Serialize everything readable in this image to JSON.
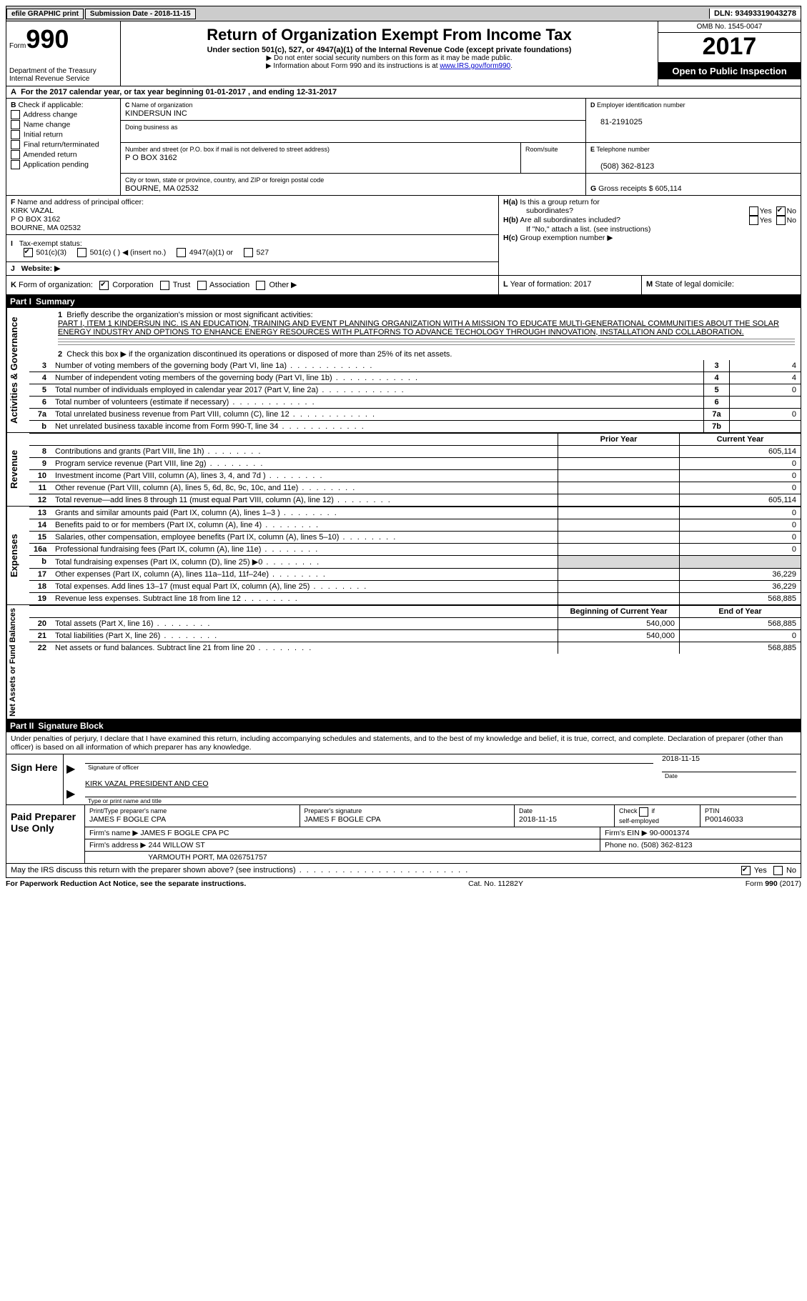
{
  "topbar": {
    "efile_label": "efile GRAPHIC print",
    "submission_label": "Submission Date - 2018-11-15",
    "dln_label": "DLN: 93493319043278"
  },
  "header": {
    "form_label": "Form",
    "form_number": "990",
    "dept1": "Department of the Treasury",
    "dept2": "Internal Revenue Service",
    "title": "Return of Organization Exempt From Income Tax",
    "subtitle": "Under section 501(c), 527, or 4947(a)(1) of the Internal Revenue Code (except private foundations)",
    "note1": "Do not enter social security numbers on this form as it may be made public.",
    "note2_pre": "Information about Form 990 and its instructions is at ",
    "note2_link": "www.IRS.gov/form990",
    "omb": "OMB No. 1545-0047",
    "year": "2017",
    "open": "Open to Public Inspection"
  },
  "A": "For the 2017 calendar year, or tax year beginning 01-01-2017   , and ending 12-31-2017",
  "B": {
    "title": "Check if applicable:",
    "items": [
      "Address change",
      "Name change",
      "Initial return",
      "Final return/terminated",
      "Amended return",
      "Application pending"
    ]
  },
  "C": {
    "lbl_name": "Name of organization",
    "name": "KINDERSUN INC",
    "lbl_dba": "Doing business as",
    "dba": "",
    "lbl_addr": "Number and street (or P.O. box if mail is not delivered to street address)",
    "lbl_room": "Room/suite",
    "addr": "P O BOX 3162",
    "lbl_city": "City or town, state or province, country, and ZIP or foreign postal code",
    "city": "BOURNE, MA  02532"
  },
  "D": {
    "lbl": "Employer identification number",
    "val": "81-2191025"
  },
  "E": {
    "lbl": "Telephone number",
    "val": "(508) 362-8123"
  },
  "G": {
    "lbl": "Gross receipts $",
    "val": "605,114"
  },
  "F": {
    "lbl": "Name and address of principal officer:",
    "v1": "KIRK VAZAL",
    "v2": "P O BOX 3162",
    "v3": "BOURNE, MA  02532"
  },
  "H": {
    "a": "Is this a group return for",
    "a2": "subordinates?",
    "b": "Are all subordinates included?",
    "ifno": "If \"No,\" attach a list. (see instructions)",
    "c": "Group exemption number ▶",
    "yes": "Yes",
    "no": "No"
  },
  "I": {
    "lbl": "Tax-exempt status:",
    "o1": "501(c)(3)",
    "o2": "501(c) (   ) ◀ (insert no.)",
    "o3": "4947(a)(1) or",
    "o4": "527"
  },
  "J": {
    "lbl": "Website: ▶",
    "val": ""
  },
  "K": {
    "lbl": "Form of organization:",
    "o1": "Corporation",
    "o2": "Trust",
    "o3": "Association",
    "o4": "Other ▶"
  },
  "L": {
    "lbl": "Year of formation:",
    "val": "2017"
  },
  "M": {
    "lbl": "State of legal domicile:",
    "val": ""
  },
  "part1": {
    "label": "Part I",
    "title": "Summary",
    "l1_lbl": "Briefly describe the organization's mission or most significant activities:",
    "l1_text": "PART I, ITEM 1 KINDERSUN INC. IS AN EDUCATION, TRAINING AND EVENT PLANNING ORGANIZATION WITH A MISSION TO EDUCATE MULTI-GENERATIONAL COMMUNITIES ABOUT THE SOLAR ENERGY INDUSTRY AND OPTIONS TO ENHANCE ENERGY RESOURCES WITH PLATFORNS TO ADVANCE TECHOLOGY THROUGH INNOVATION, INSTALLATION AND COLLABORATION.",
    "l2": "Check this box ▶        if the organization discontinued its operations or disposed of more than 25% of its net assets.",
    "rows_a": [
      {
        "n": "3",
        "d": "Number of voting members of the governing body (Part VI, line 1a)",
        "ln": "3",
        "v": "4"
      },
      {
        "n": "4",
        "d": "Number of independent voting members of the governing body (Part VI, line 1b)",
        "ln": "4",
        "v": "4"
      },
      {
        "n": "5",
        "d": "Total number of individuals employed in calendar year 2017 (Part V, line 2a)",
        "ln": "5",
        "v": "0"
      },
      {
        "n": "6",
        "d": "Total number of volunteers (estimate if necessary)",
        "ln": "6",
        "v": ""
      },
      {
        "n": "7a",
        "d": "Total unrelated business revenue from Part VIII, column (C), line 12",
        "ln": "7a",
        "v": "0"
      },
      {
        "n": "b",
        "d": "Net unrelated business taxable income from Form 990-T, line 34",
        "ln": "7b",
        "v": ""
      }
    ],
    "hdr2": {
      "c1": "Prior Year",
      "c2": "Current Year"
    },
    "rows_rev": [
      {
        "n": "8",
        "d": "Contributions and grants (Part VIII, line 1h)",
        "p": "",
        "c": "605,114"
      },
      {
        "n": "9",
        "d": "Program service revenue (Part VIII, line 2g)",
        "p": "",
        "c": "0"
      },
      {
        "n": "10",
        "d": "Investment income (Part VIII, column (A), lines 3, 4, and 7d )",
        "p": "",
        "c": "0"
      },
      {
        "n": "11",
        "d": "Other revenue (Part VIII, column (A), lines 5, 6d, 8c, 9c, 10c, and 11e)",
        "p": "",
        "c": "0"
      },
      {
        "n": "12",
        "d": "Total revenue—add lines 8 through 11 (must equal Part VIII, column (A), line 12)",
        "p": "",
        "c": "605,114"
      }
    ],
    "rows_exp": [
      {
        "n": "13",
        "d": "Grants and similar amounts paid (Part IX, column (A), lines 1–3 )",
        "p": "",
        "c": "0"
      },
      {
        "n": "14",
        "d": "Benefits paid to or for members (Part IX, column (A), line 4)",
        "p": "",
        "c": "0"
      },
      {
        "n": "15",
        "d": "Salaries, other compensation, employee benefits (Part IX, column (A), lines 5–10)",
        "p": "",
        "c": "0"
      },
      {
        "n": "16a",
        "d": "Professional fundraising fees (Part IX, column (A), line 11e)",
        "p": "",
        "c": "0"
      },
      {
        "n": "b",
        "d": "Total fundraising expenses (Part IX, column (D), line 25) ▶0",
        "p": "shade",
        "c": "shade"
      },
      {
        "n": "17",
        "d": "Other expenses (Part IX, column (A), lines 11a–11d, 11f–24e)",
        "p": "",
        "c": "36,229"
      },
      {
        "n": "18",
        "d": "Total expenses. Add lines 13–17 (must equal Part IX, column (A), line 25)",
        "p": "",
        "c": "36,229"
      },
      {
        "n": "19",
        "d": "Revenue less expenses. Subtract line 18 from line 12",
        "p": "",
        "c": "568,885"
      }
    ],
    "hdr3": {
      "c1": "Beginning of Current Year",
      "c2": "End of Year"
    },
    "rows_net": [
      {
        "n": "20",
        "d": "Total assets (Part X, line 16)",
        "p": "540,000",
        "c": "568,885"
      },
      {
        "n": "21",
        "d": "Total liabilities (Part X, line 26)",
        "p": "540,000",
        "c": "0"
      },
      {
        "n": "22",
        "d": "Net assets or fund balances. Subtract line 21 from line 20",
        "p": "",
        "c": "568,885"
      }
    ],
    "side_gov": "Activities & Governance",
    "side_rev": "Revenue",
    "side_exp": "Expenses",
    "side_net": "Net Assets or Fund Balances"
  },
  "part2": {
    "label": "Part II",
    "title": "Signature Block",
    "perjury": "Under penalties of perjury, I declare that I have examined this return, including accompanying schedules and statements, and to the best of my knowledge and belief, it is true, correct, and complete. Declaration of preparer (other than officer) is based on all information of which preparer has any knowledge.",
    "sign_here": "Sign Here",
    "sig_of_officer": "Signature of officer",
    "sig_date": "2018-11-15",
    "sig_date_lbl": "Date",
    "typed_name": "KIRK VAZAL PRESIDENT AND CEO",
    "typed_lbl": "Type or print name and title",
    "paid_prep": "Paid Preparer Use Only",
    "pp_name_lbl": "Print/Type preparer's name",
    "pp_name": "JAMES F BOGLE CPA",
    "pp_sig_lbl": "Preparer's signature",
    "pp_sig": "JAMES F BOGLE CPA",
    "pp_date_lbl": "Date",
    "pp_date": "2018-11-15",
    "pp_check_lbl": "Check         if self-employed",
    "pp_ptin_lbl": "PTIN",
    "pp_ptin": "P00146033",
    "firm_name_lbl": "Firm's name    ▶",
    "firm_name": "JAMES F BOGLE CPA PC",
    "firm_ein_lbl": "Firm's EIN ▶",
    "firm_ein": "90-0001374",
    "firm_addr_lbl": "Firm's address ▶",
    "firm_addr": "244 WILLOW ST",
    "firm_city": "YARMOUTH PORT, MA  026751757",
    "firm_phone_lbl": "Phone no.",
    "firm_phone": "(508) 362-8123"
  },
  "footer": {
    "discuss": "May the IRS discuss this return with the preparer shown above? (see instructions)",
    "yes": "Yes",
    "no": "No",
    "paperwork": "For Paperwork Reduction Act Notice, see the separate instructions.",
    "cat": "Cat. No. 11282Y",
    "form": "Form 990 (2017)"
  }
}
